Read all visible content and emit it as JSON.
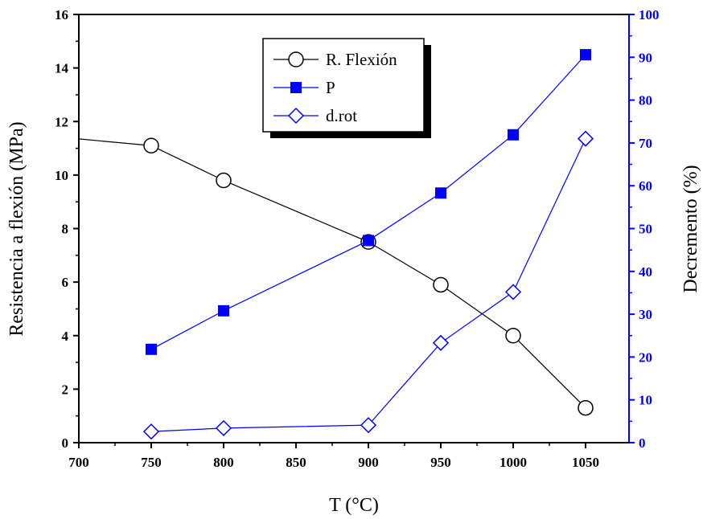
{
  "chart_data": {
    "type": "line",
    "x": [
      750,
      800,
      900,
      950,
      1000,
      1050
    ],
    "xlabel": "T (°C)",
    "ylabel": "Resistencia a flexión (MPa)",
    "y2label": "Decremento (%)",
    "xlim": [
      700,
      1080
    ],
    "ylim": [
      0,
      16
    ],
    "y2lim": [
      0,
      100
    ],
    "xticks": [
      700,
      750,
      800,
      850,
      900,
      950,
      1000,
      1050
    ],
    "yticks": [
      0,
      2,
      4,
      6,
      8,
      10,
      12,
      14,
      16
    ],
    "y2ticks": [
      0,
      10,
      20,
      30,
      40,
      50,
      60,
      70,
      80,
      90,
      100
    ],
    "grid": false,
    "legend_position": "top-center",
    "series": [
      {
        "name": "R. Flexión",
        "axis": "left",
        "marker": "open-circle",
        "color": "#000000",
        "values": [
          11.1,
          9.8,
          7.5,
          5.9,
          4.0,
          1.3
        ],
        "lead_in": {
          "x": 700,
          "y": 11.35
        }
      },
      {
        "name": "P",
        "axis": "right",
        "marker": "filled-square",
        "color": "#0000ff",
        "values": [
          21.8,
          30.8,
          47.2,
          58.3,
          71.9,
          90.6
        ]
      },
      {
        "name": "d.rot",
        "axis": "right",
        "marker": "open-diamond",
        "color": "#0000ff",
        "values": [
          2.6,
          3.4,
          4.1,
          23.3,
          35.2,
          71.0
        ]
      }
    ]
  }
}
